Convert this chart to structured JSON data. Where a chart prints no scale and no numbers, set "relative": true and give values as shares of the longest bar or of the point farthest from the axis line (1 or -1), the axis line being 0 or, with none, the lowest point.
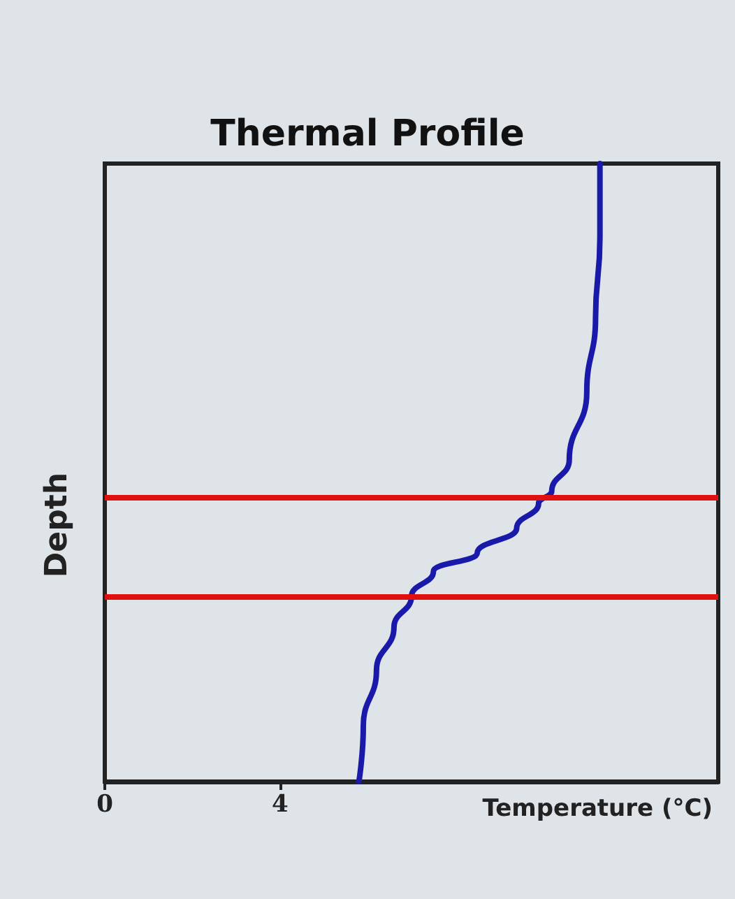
{
  "chart_data": {
    "type": "line",
    "title": "Thermal Profile",
    "xlabel": "Temperature (°C)",
    "ylabel": "Depth",
    "relative": true,
    "xlim": [
      0,
      14
    ],
    "xticks": [
      0,
      4
    ],
    "grid": false,
    "marker": "none",
    "line_style": "solid",
    "series": [
      {
        "color": "#1a1aaa",
        "x": [
          11.3,
          11.3,
          11.2,
          11.0,
          10.6,
          10.2,
          9.9,
          9.4,
          8.5,
          7.5,
          7.0,
          6.6,
          6.2,
          5.9,
          5.8
        ],
        "values": [
          1,
          0.88,
          0.75,
          0.63,
          0.52,
          0.47,
          0.45,
          0.41,
          0.37,
          0.34,
          0.3,
          0.25,
          0.18,
          0.09,
          0
        ]
      }
    ],
    "ref_lines": [
      {
        "axis": "y",
        "value": 0.46,
        "color": "#e01010"
      },
      {
        "axis": "y",
        "value": 0.3,
        "color": "#e01010"
      }
    ]
  }
}
